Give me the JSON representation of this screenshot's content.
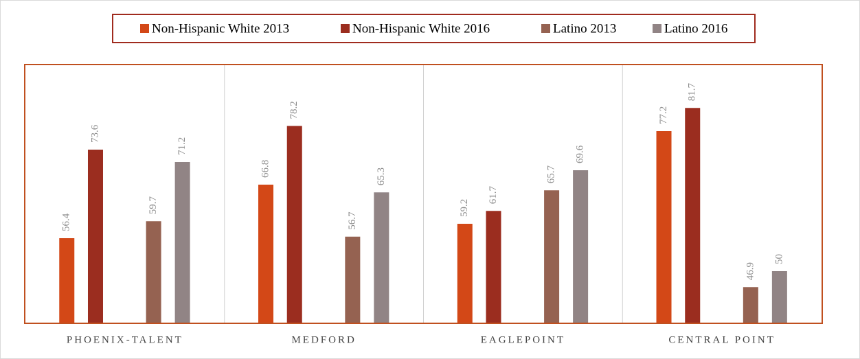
{
  "chart_data": {
    "type": "bar",
    "categories": [
      "PHOENIX-TALENT",
      "MEDFORD",
      "EAGLEPOINT",
      "CENTRAL POINT"
    ],
    "series": [
      {
        "name": "Non-Hispanic  White 2013",
        "color": "#d34817",
        "values": [
          56.4,
          66.8,
          59.2,
          77.2
        ]
      },
      {
        "name": "Non-Hispanic  White 2016",
        "color": "#9b2d1f",
        "values": [
          73.6,
          78.2,
          61.7,
          81.7
        ]
      },
      {
        "name": "Latino 2013",
        "color": "#956251",
        "values": [
          59.7,
          56.7,
          65.7,
          46.9
        ]
      },
      {
        "name": "Latino 2016",
        "color": "#918485",
        "values": [
          71.2,
          65.3,
          69.6,
          50
        ]
      }
    ],
    "ylim": [
      40,
      90
    ]
  }
}
